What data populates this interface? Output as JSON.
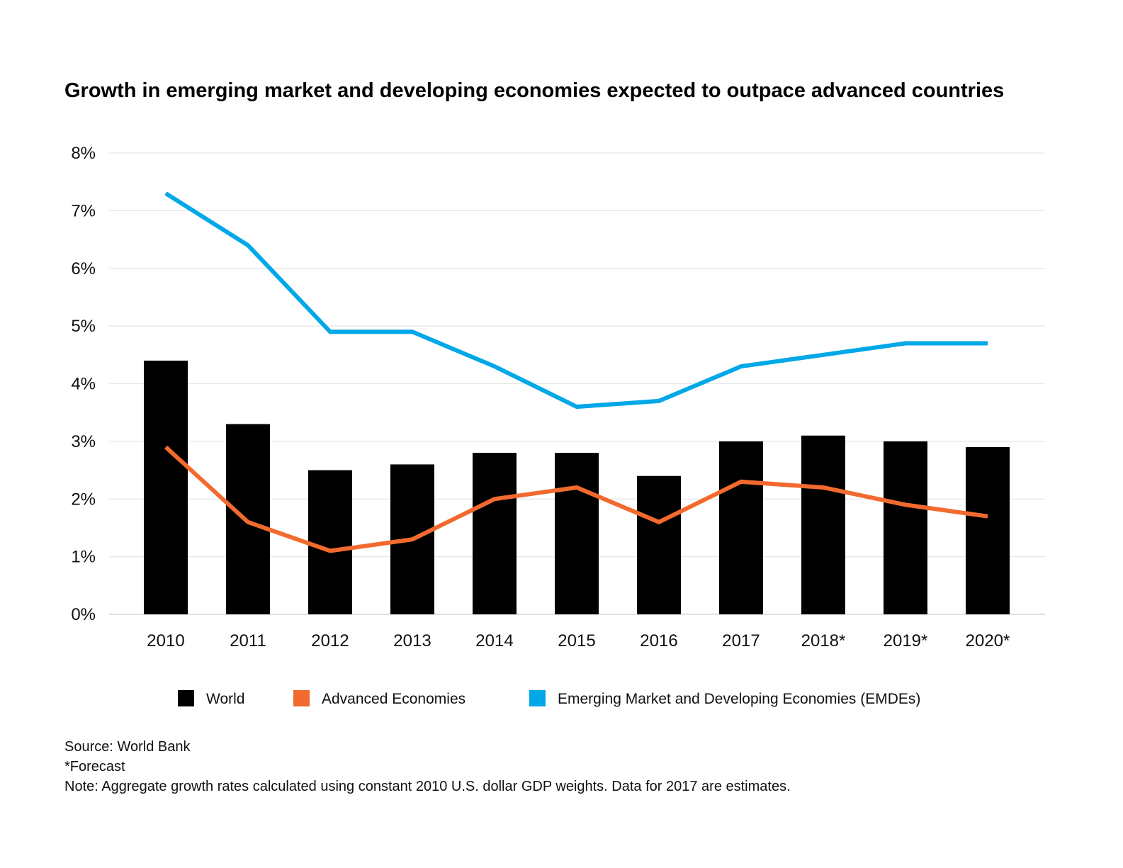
{
  "chart_data": {
    "type": "bar",
    "title": "Growth in emerging market and developing economies expected to outpace advanced countries",
    "categories": [
      "2010",
      "2011",
      "2012",
      "2013",
      "2014",
      "2015",
      "2016",
      "2017",
      "2018*",
      "2019*",
      "2020*"
    ],
    "ylim": [
      0,
      8
    ],
    "yticks": [
      0,
      1,
      2,
      3,
      4,
      5,
      6,
      7,
      8
    ],
    "ytick_labels": [
      "0%",
      "1%",
      "2%",
      "3%",
      "4%",
      "5%",
      "6%",
      "7%",
      "8%"
    ],
    "grid": true,
    "legend_position": "bottom",
    "series": [
      {
        "name": "World",
        "type": "bar",
        "color": "#000000",
        "values": [
          4.4,
          3.3,
          2.5,
          2.6,
          2.8,
          2.8,
          2.4,
          3.0,
          3.1,
          3.0,
          2.9
        ]
      },
      {
        "name": "Advanced Economies",
        "type": "line",
        "color": "#f26a2e",
        "values": [
          2.9,
          1.6,
          1.1,
          1.3,
          2.0,
          2.2,
          1.6,
          2.3,
          2.2,
          1.9,
          1.7
        ]
      },
      {
        "name": "Emerging Market and Developing Economies (EMDEs)",
        "type": "line",
        "color": "#00a8e8",
        "values": [
          7.3,
          6.4,
          4.9,
          4.9,
          4.3,
          3.6,
          3.7,
          4.3,
          4.5,
          4.7,
          4.7
        ]
      }
    ]
  },
  "footnotes": {
    "source": "Source: World Bank",
    "forecast": "*Forecast",
    "note": "Note: Aggregate growth rates calculated using constant 2010 U.S. dollar GDP weights. Data for 2017 are estimates."
  }
}
